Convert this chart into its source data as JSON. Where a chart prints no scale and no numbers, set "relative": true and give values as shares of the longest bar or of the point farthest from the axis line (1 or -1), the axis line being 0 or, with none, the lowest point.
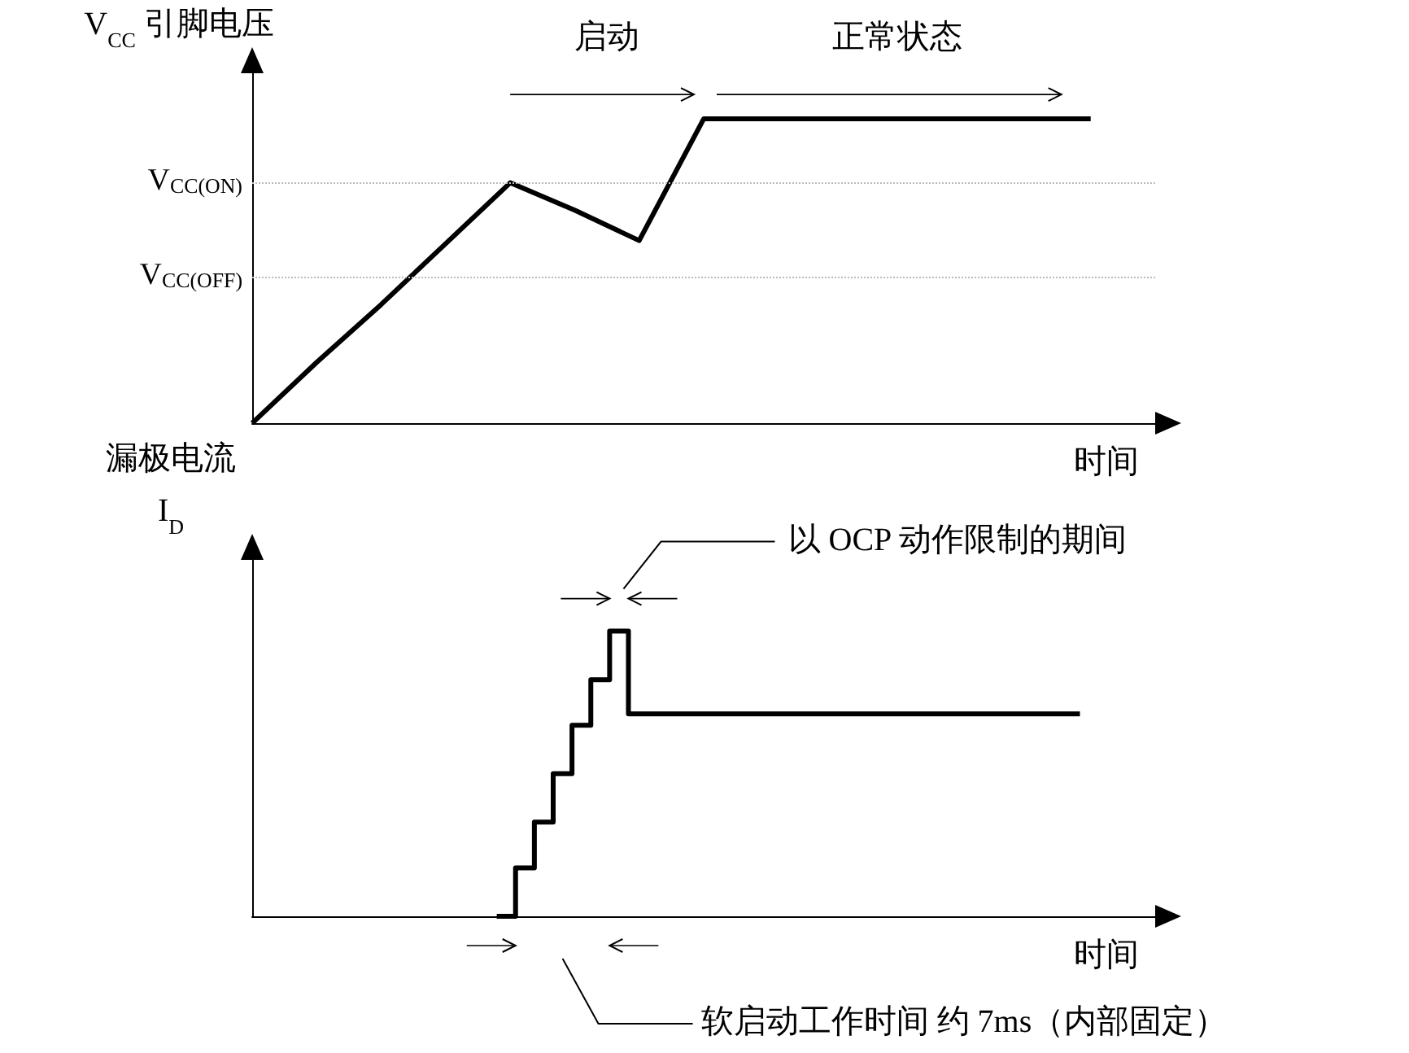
{
  "chart_data": [
    {
      "type": "line",
      "relative": true,
      "ylabel": "V$_{CC}$ 引脚电压",
      "xlabel": "时间",
      "categories": [
        null,
        null,
        null,
        null,
        null,
        null,
        null,
        null,
        null,
        null,
        null,
        null,
        null,
        null,
        null
      ],
      "series": [
        {
          "color": "#000000",
          "values": [
            0,
            0.2,
            0.39,
            0.59,
            0.79,
            0.7,
            0.6,
            1,
            1,
            1,
            1,
            1,
            1,
            1,
            null
          ]
        }
      ],
      "ref_lines": [
        {
          "axis": "y",
          "value": 0.79,
          "label": "V$_{CC(ON)}$",
          "line_style": "dotted",
          "color": "#bbbbbb"
        },
        {
          "axis": "y",
          "value": 0.48,
          "label": "V$_{CC(OFF)}$",
          "line_style": "dotted",
          "color": "#bbbbbb"
        }
      ],
      "annotations": [
        "启动",
        "正常状态"
      ],
      "marker": "none"
    },
    {
      "type": "step",
      "relative": true,
      "ylabel": "漏极电流\nI$_{D}$",
      "xlabel": "时间",
      "categories": [
        null,
        null,
        null,
        null,
        null,
        null,
        null,
        null,
        null,
        null,
        null,
        null,
        null,
        null,
        null,
        null,
        null,
        null,
        null,
        null,
        null,
        null,
        null,
        null,
        null,
        null,
        null,
        null,
        null,
        null,
        null,
        null,
        null,
        null,
        null,
        null,
        null,
        null,
        null,
        null,
        null,
        null,
        null,
        null,
        null,
        null,
        null,
        null,
        null
      ],
      "series": [
        {
          "color": "#000000",
          "values": [
            null,
            null,
            null,
            null,
            null,
            null,
            null,
            null,
            null,
            null,
            null,
            null,
            null,
            null,
            0,
            0.17,
            0.33,
            0.5,
            0.67,
            0.83,
            1,
            0.71,
            0.71,
            0.71,
            0.71,
            0.71,
            0.71,
            0.71,
            0.71,
            0.71,
            0.71,
            0.71,
            0.71,
            0.71,
            0.71,
            0.71,
            0.71,
            0.71,
            0.71,
            0.71,
            0.71,
            0.71,
            0.71,
            0.71,
            0.71,
            null,
            null,
            null,
            null
          ]
        }
      ],
      "annotations": [
        "以 OCP 动作限制的期间",
        "软启动工作时间 约 7ms（内部固定）"
      ],
      "marker": "none"
    }
  ]
}
